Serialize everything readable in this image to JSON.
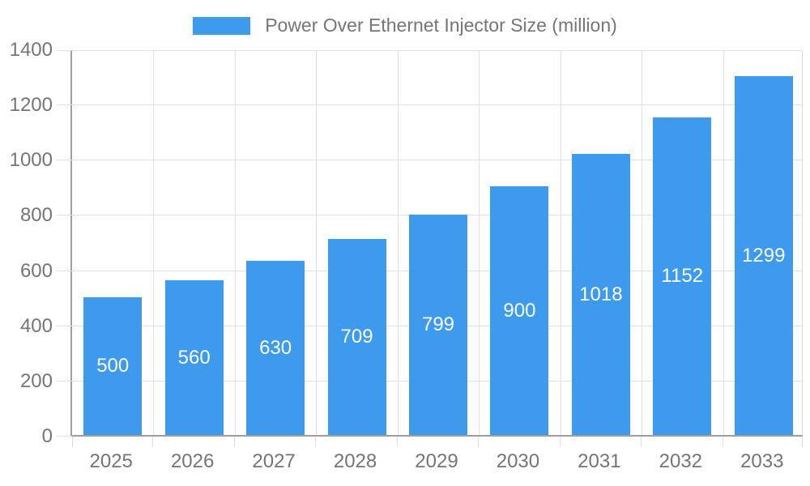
{
  "legend": {
    "label": "Power Over Ethernet Injector Size (million)"
  },
  "chart_data": {
    "type": "bar",
    "title": "Power Over Ethernet Injector Size (million)",
    "categories": [
      "2025",
      "2026",
      "2027",
      "2028",
      "2029",
      "2030",
      "2031",
      "2032",
      "2033"
    ],
    "values": [
      500,
      560,
      630,
      709,
      799,
      900,
      1018,
      1152,
      1299
    ],
    "xlabel": "",
    "ylabel": "",
    "ylim": [
      0,
      1400
    ],
    "yticks": [
      0,
      200,
      400,
      600,
      800,
      1000,
      1200,
      1400
    ],
    "grid": true,
    "legend_position": "top",
    "bar_labels": "centered-inside-white",
    "colors": {
      "bar": "#3d9aec",
      "bar_label": "#ffffff",
      "axis": "#9e9e9e",
      "grid": "#e0e0e0",
      "text": "#757575",
      "background": "#ffffff"
    }
  }
}
